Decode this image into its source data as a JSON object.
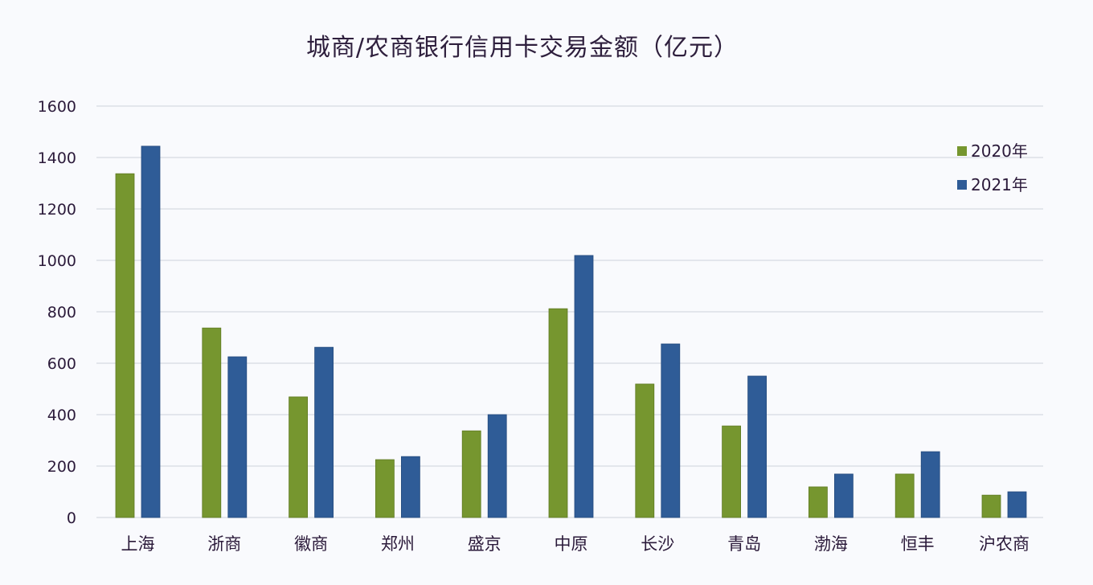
{
  "chart_data": {
    "type": "bar",
    "title": "城商/农商银行信用卡交易金额（亿元）",
    "xlabel": "",
    "ylabel": "",
    "ylim": [
      0,
      1600
    ],
    "yticks": [
      0,
      200,
      400,
      600,
      800,
      1000,
      1200,
      1400,
      1600
    ],
    "grid": true,
    "legend_position": "right-top",
    "categories": [
      "上海",
      "浙商",
      "徽商",
      "郑州",
      "盛京",
      "中原",
      "长沙",
      "青岛",
      "渤海",
      "恒丰",
      "沪农商"
    ],
    "series": [
      {
        "name": "2020年",
        "color": "#76962f",
        "values": [
          1337,
          737,
          469,
          225,
          337,
          812,
          519,
          356,
          119,
          169,
          87
        ]
      },
      {
        "name": "2021年",
        "color": "#2f5c97",
        "values": [
          1444,
          625,
          662,
          237,
          400,
          1019,
          675,
          550,
          169,
          256,
          100
        ]
      }
    ]
  }
}
